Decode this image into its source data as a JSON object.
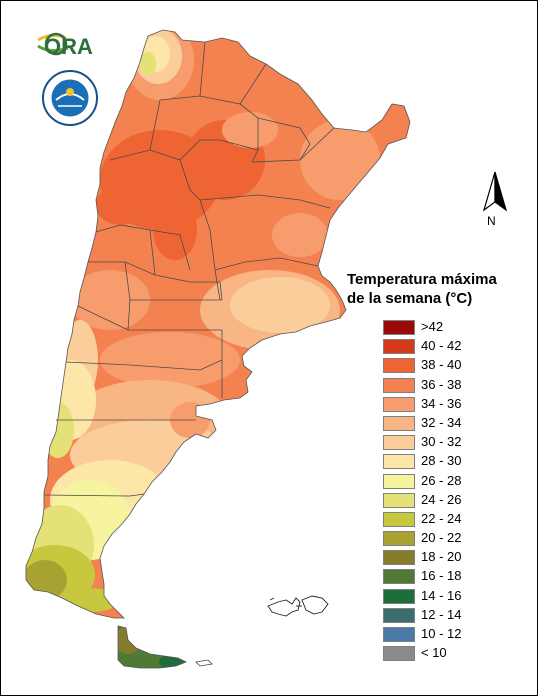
{
  "logos": {
    "ora": "ORA",
    "smn": "SERVICIO METEOROLÓGICO NACIONAL · ARGENTINA"
  },
  "north": {
    "label": "N"
  },
  "legend": {
    "title_line1": "Temperatura máxima",
    "title_line2": "de la semana (°C)",
    "items": [
      {
        "label": ">42",
        "color": "#9b0a0a"
      },
      {
        "label": "40 - 42",
        "color": "#d4391a"
      },
      {
        "label": "38 - 40",
        "color": "#ee6432"
      },
      {
        "label": "36 - 38",
        "color": "#f48250"
      },
      {
        "label": "34 - 36",
        "color": "#f79d6d"
      },
      {
        "label": "32 - 34",
        "color": "#f9b685"
      },
      {
        "label": "30 - 32",
        "color": "#fbcd9a"
      },
      {
        "label": "28 - 30",
        "color": "#fce6a8"
      },
      {
        "label": "26 - 28",
        "color": "#f7f4a0"
      },
      {
        "label": "24 - 26",
        "color": "#e4e276"
      },
      {
        "label": "22 - 24",
        "color": "#c8c83e"
      },
      {
        "label": "20 - 22",
        "color": "#a7a232"
      },
      {
        "label": "18 - 20",
        "color": "#857c2c"
      },
      {
        "label": "16 - 18",
        "color": "#4f7a35"
      },
      {
        "label": "14 - 16",
        "color": "#1d6e3a"
      },
      {
        "label": "12 - 14",
        "color": "#3c6e6e"
      },
      {
        "label": "10 - 12",
        "color": "#4b79a8"
      },
      {
        "label": "< 10",
        "color": "#8a8a8a"
      }
    ]
  }
}
